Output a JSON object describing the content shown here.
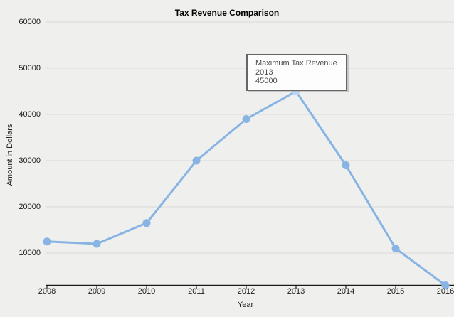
{
  "title": "Tax Revenue Comparison",
  "chart_data": {
    "type": "line",
    "title": "Tax Revenue Comparison",
    "xlabel": "Year",
    "ylabel": "Amount in Dollars",
    "categories": [
      2008,
      2009,
      2010,
      2011,
      2012,
      2013,
      2014,
      2015,
      2016
    ],
    "series": [
      {
        "name": "Tax Revenue",
        "values": [
          12500,
          12000,
          16500,
          30000,
          39000,
          45000,
          29000,
          11000,
          3000
        ]
      }
    ],
    "ylim": [
      3000,
      60000
    ],
    "yticks": [
      60000,
      50000,
      40000,
      30000,
      20000,
      10000
    ],
    "grid": true,
    "legend": "none",
    "highlight": {
      "index": 5,
      "year": 2013,
      "value": 45000
    },
    "colors": {
      "background": "#efefee",
      "gridline": "#d9d9d8",
      "axis_line": "#1a1a1a",
      "line": "#87b4e3",
      "marker": "#87b4e3",
      "highlight_marker": "#bdd7f0",
      "tick_label": "#1c1c1c",
      "tooltip_border": "#666666",
      "tooltip_background": "#fdfdfd",
      "tooltip_text": "#4c4c4c"
    }
  },
  "tooltip": {
    "line1": "Maximum Tax Revenue",
    "line2": "2013",
    "line3": "45000"
  }
}
